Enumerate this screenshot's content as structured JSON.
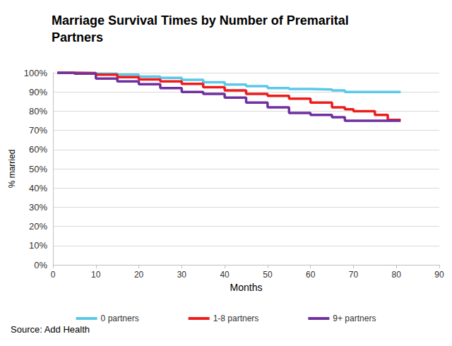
{
  "chart_data": {
    "type": "line",
    "title": "Marriage Survival Times by Number of Premarital Partners",
    "x_label": "Months",
    "y_label": "% married",
    "source": "Source: Add Health",
    "x": [
      1,
      5,
      10,
      15,
      20,
      25,
      30,
      35,
      40,
      45,
      50,
      55,
      60,
      65,
      68,
      70,
      75,
      77,
      78,
      81
    ],
    "series": [
      {
        "name": "0 partners",
        "color": "#5bc8e8",
        "values": [
          100,
          99.8,
          99.5,
          99,
          98,
          97.3,
          96.3,
          95,
          93.8,
          93,
          92,
          91.5,
          91.3,
          90.8,
          90,
          90,
          90,
          90,
          90,
          90
        ]
      },
      {
        "name": "1-8 partners",
        "color": "#ee1c1c",
        "values": [
          100,
          99.8,
          99,
          97.7,
          96.5,
          95.5,
          94.2,
          92.5,
          90.8,
          89,
          88,
          86.5,
          84.5,
          82,
          81,
          80,
          78,
          78,
          75.5,
          75.5
        ]
      },
      {
        "name": "9+ partners",
        "color": "#7030a0",
        "values": [
          100,
          99.5,
          97,
          95.5,
          94,
          92,
          90,
          89,
          87,
          84.5,
          82,
          79,
          78,
          76.8,
          75,
          75,
          75,
          75,
          75,
          75
        ]
      }
    ],
    "xlim": [
      0,
      90
    ],
    "xticks": [
      0,
      10,
      20,
      30,
      40,
      50,
      60,
      70,
      80,
      90
    ],
    "ylim": [
      0,
      100
    ],
    "yticks": [
      {
        "value": 0,
        "label": "0%"
      },
      {
        "value": 10,
        "label": "10%"
      },
      {
        "value": 20,
        "label": "20%"
      },
      {
        "value": 30,
        "label": "30%"
      },
      {
        "value": 40,
        "label": "40%"
      },
      {
        "value": 50,
        "label": "50%"
      },
      {
        "value": 60,
        "label": "60%"
      },
      {
        "value": 70,
        "label": "70%"
      },
      {
        "value": 80,
        "label": "80%"
      },
      {
        "value": 90,
        "label": "90%"
      },
      {
        "value": 100,
        "label": "100%"
      }
    ],
    "grid": true,
    "legend": "bottom"
  }
}
